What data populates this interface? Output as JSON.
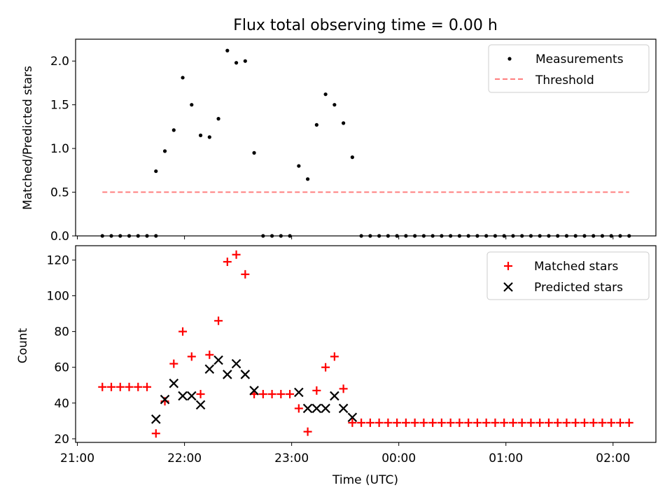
{
  "title": "Flux total observing time = 0.00 h",
  "xlabel": "Time (UTC)",
  "x_tick_labels": [
    "21:00",
    "22:00",
    "23:00",
    "00:00",
    "01:00",
    "02:00"
  ],
  "chart_data": [
    {
      "type": "scatter",
      "ylabel": "Matched/Predicted stars",
      "ylim": [
        0,
        2.25
      ],
      "yticks": [
        0.0,
        0.5,
        1.0,
        1.5,
        2.0
      ],
      "y_tick_labels": [
        "0.0",
        "0.5",
        "1.0",
        "1.5",
        "2.0"
      ],
      "xlim": [
        "20:59",
        "02:24"
      ],
      "legend_position": "top-right",
      "series": [
        {
          "name": "Measurements",
          "kind": "scatter",
          "color": "#000000",
          "points": [
            [
              "21:14",
              0
            ],
            [
              "21:19",
              0
            ],
            [
              "21:24",
              0
            ],
            [
              "21:29",
              0
            ],
            [
              "21:34",
              0
            ],
            [
              "21:39",
              0
            ],
            [
              "21:44",
              0
            ],
            [
              "21:44",
              0.74
            ],
            [
              "21:49",
              0.97
            ],
            [
              "21:54",
              1.21
            ],
            [
              "21:59",
              1.81
            ],
            [
              "22:04",
              1.5
            ],
            [
              "22:09",
              1.15
            ],
            [
              "22:14",
              1.13
            ],
            [
              "22:19",
              1.34
            ],
            [
              "22:24",
              2.12
            ],
            [
              "22:29",
              1.98
            ],
            [
              "22:34",
              2.0
            ],
            [
              "22:39",
              0.95
            ],
            [
              "22:44",
              0
            ],
            [
              "22:49",
              0
            ],
            [
              "22:54",
              0
            ],
            [
              "22:59",
              0
            ],
            [
              "23:04",
              0.8
            ],
            [
              "23:09",
              0.65
            ],
            [
              "23:14",
              1.27
            ],
            [
              "23:19",
              1.62
            ],
            [
              "23:24",
              1.5
            ],
            [
              "23:29",
              1.29
            ],
            [
              "23:34",
              0.9
            ],
            [
              "23:39",
              0
            ],
            [
              "23:44",
              0
            ],
            [
              "23:49",
              0
            ],
            [
              "23:54",
              0
            ],
            [
              "23:59",
              0
            ],
            [
              "00:04",
              0
            ],
            [
              "00:09",
              0
            ],
            [
              "00:14",
              0
            ],
            [
              "00:19",
              0
            ],
            [
              "00:24",
              0
            ],
            [
              "00:29",
              0
            ],
            [
              "00:34",
              0
            ],
            [
              "00:39",
              0
            ],
            [
              "00:44",
              0
            ],
            [
              "00:49",
              0
            ],
            [
              "00:54",
              0
            ],
            [
              "00:59",
              0
            ],
            [
              "01:04",
              0
            ],
            [
              "01:09",
              0
            ],
            [
              "01:14",
              0
            ],
            [
              "01:19",
              0
            ],
            [
              "01:24",
              0
            ],
            [
              "01:29",
              0
            ],
            [
              "01:34",
              0
            ],
            [
              "01:39",
              0
            ],
            [
              "01:44",
              0
            ],
            [
              "01:49",
              0
            ],
            [
              "01:54",
              0
            ],
            [
              "01:59",
              0
            ],
            [
              "02:04",
              0
            ],
            [
              "02:09",
              0
            ]
          ]
        },
        {
          "name": "Threshold",
          "kind": "dashed-line",
          "color": "#ff7f7f",
          "x": [
            "21:14",
            "02:09"
          ],
          "y": [
            0.5,
            0.5
          ]
        }
      ]
    },
    {
      "type": "scatter",
      "ylabel": "Count",
      "ylim": [
        18,
        128
      ],
      "yticks": [
        20,
        40,
        60,
        80,
        100,
        120
      ],
      "y_tick_labels": [
        "20",
        "40",
        "60",
        "80",
        "100",
        "120"
      ],
      "xlim": [
        "20:59",
        "02:24"
      ],
      "legend_position": "top-right",
      "series": [
        {
          "name": "Matched stars",
          "marker": "plus",
          "color": "#ff0000",
          "points": [
            [
              "21:14",
              49
            ],
            [
              "21:19",
              49
            ],
            [
              "21:24",
              49
            ],
            [
              "21:29",
              49
            ],
            [
              "21:34",
              49
            ],
            [
              "21:39",
              49
            ],
            [
              "21:44",
              23
            ],
            [
              "21:49",
              41
            ],
            [
              "21:54",
              62
            ],
            [
              "21:59",
              80
            ],
            [
              "22:04",
              66
            ],
            [
              "22:09",
              45
            ],
            [
              "22:14",
              67
            ],
            [
              "22:19",
              86
            ],
            [
              "22:24",
              119
            ],
            [
              "22:29",
              123
            ],
            [
              "22:34",
              112
            ],
            [
              "22:39",
              45
            ],
            [
              "22:44",
              45
            ],
            [
              "22:49",
              45
            ],
            [
              "22:54",
              45
            ],
            [
              "22:59",
              45
            ],
            [
              "23:04",
              37
            ],
            [
              "23:09",
              24
            ],
            [
              "23:14",
              47
            ],
            [
              "23:19",
              60
            ],
            [
              "23:24",
              66
            ],
            [
              "23:29",
              48
            ],
            [
              "23:34",
              29
            ],
            [
              "23:39",
              29
            ],
            [
              "23:44",
              29
            ],
            [
              "23:49",
              29
            ],
            [
              "23:54",
              29
            ],
            [
              "23:59",
              29
            ],
            [
              "00:04",
              29
            ],
            [
              "00:09",
              29
            ],
            [
              "00:14",
              29
            ],
            [
              "00:19",
              29
            ],
            [
              "00:24",
              29
            ],
            [
              "00:29",
              29
            ],
            [
              "00:34",
              29
            ],
            [
              "00:39",
              29
            ],
            [
              "00:44",
              29
            ],
            [
              "00:49",
              29
            ],
            [
              "00:54",
              29
            ],
            [
              "00:59",
              29
            ],
            [
              "01:04",
              29
            ],
            [
              "01:09",
              29
            ],
            [
              "01:14",
              29
            ],
            [
              "01:19",
              29
            ],
            [
              "01:24",
              29
            ],
            [
              "01:29",
              29
            ],
            [
              "01:34",
              29
            ],
            [
              "01:39",
              29
            ],
            [
              "01:44",
              29
            ],
            [
              "01:49",
              29
            ],
            [
              "01:54",
              29
            ],
            [
              "01:59",
              29
            ],
            [
              "02:04",
              29
            ],
            [
              "02:09",
              29
            ]
          ]
        },
        {
          "name": "Predicted stars",
          "marker": "x",
          "color": "#000000",
          "points": [
            [
              "21:44",
              31
            ],
            [
              "21:49",
              42
            ],
            [
              "21:54",
              51
            ],
            [
              "21:59",
              44
            ],
            [
              "22:04",
              44
            ],
            [
              "22:09",
              39
            ],
            [
              "22:14",
              59
            ],
            [
              "22:19",
              64
            ],
            [
              "22:24",
              56
            ],
            [
              "22:29",
              62
            ],
            [
              "22:34",
              56
            ],
            [
              "22:39",
              47
            ],
            [
              "23:04",
              46
            ],
            [
              "23:09",
              37
            ],
            [
              "23:14",
              37
            ],
            [
              "23:19",
              37
            ],
            [
              "23:24",
              44
            ],
            [
              "23:29",
              37
            ],
            [
              "23:34",
              32
            ]
          ]
        }
      ]
    }
  ]
}
